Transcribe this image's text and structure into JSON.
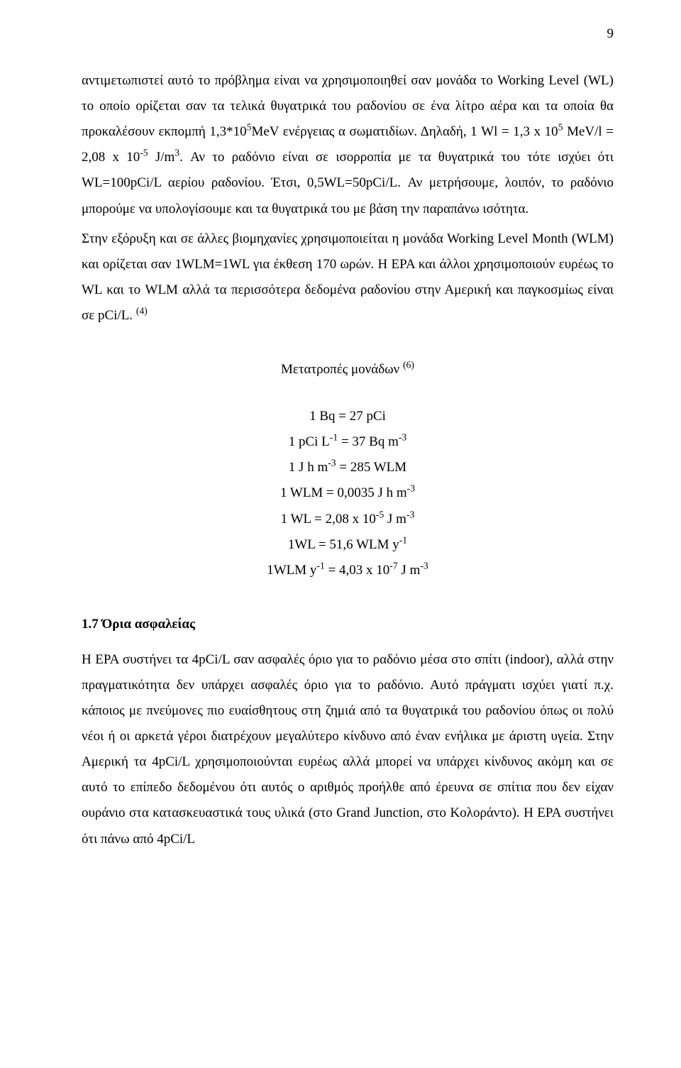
{
  "page_number": "9",
  "paragraph1_html": "αντιμετωπιστεί αυτό το πρόβλημα είναι να χρησιμοποιηθεί σαν μονάδα το Working Level (WL) το οποίο ορίζεται σαν τα τελικά θυγατρικά του ραδονίου σε ένα λίτρο αέρα και τα οποία θα προκαλέσουν εκπομπή 1,3*10<sup>5</sup>MeV ενέργειας α σωματιδίων. Δηλαδή, 1 Wl = 1,3 x 10<sup>5</sup> MeV/l = 2,08 x 10<sup>-5</sup> J/m<sup>3</sup>. Αν το ραδόνιο είναι σε ισορροπία με τα θυγατρικά του τότε ισχύει ότι WL=100pCi/L αερίου ραδονίου. Έτσι, 0,5WL=50pCi/L. Αν μετρήσουμε, λοιπόν, το ραδόνιο μπορούμε να υπολογίσουμε και τα θυγατρικά του με βάση την παραπάνω ισότητα.",
  "paragraph2_html": "Στην εξόρυξη και σε άλλες βιομηχανίες χρησιμοποιείται η μονάδα Working Level Month (WLM) και ορίζεται σαν 1WLM=1WL για έκθεση 170 ωρών. Η EPA και άλλοι χρησιμοποιούν ευρέως το WL και το WLM αλλά τα περισσότερα δεδομένα ραδονίου στην Αμερική και παγκοσμίως είναι σε pCi/L. <sup>(4)</sup>",
  "conversions_title_html": "Μετατροπές μονάδων <sup>(6)</sup>",
  "conversions": [
    "1 Bq = 27 pCi",
    "1 pCi L<sup>-1</sup> = 37 Bq m<sup>-3</sup>",
    "1 J h m<sup>-3</sup> = 285 WLM",
    "1 WLM = 0,0035  J h m<sup>-3</sup>",
    "1 WL = 2,08 x 10<sup>-5</sup> J m<sup>-3</sup>",
    "1WL = 51,6 WLM y<sup>-1</sup>",
    "1WLM y<sup>-1</sup> = 4,03 x 10<sup>-7</sup> J  m<sup>-3</sup>"
  ],
  "section_heading": "1.7 Όρια ασφαλείας",
  "paragraph3_html": "Η EPA συστήνει τα 4pCi/L σαν ασφαλές όριο για το ραδόνιο μέσα στο σπίτι (indoor), αλλά στην πραγματικότητα δεν υπάρχει ασφαλές όριο για το ραδόνιο. Αυτό πράγματι ισχύει γιατί π.χ. κάποιος με πνεύμονες πιο ευαίσθητους στη ζημιά από τα θυγατρικά του ραδονίου όπως οι πολύ νέοι ή οι αρκετά γέροι διατρέχουν μεγαλύτερο κίνδυνο από έναν ενήλικα με άριστη υγεία. Στην Αμερική τα 4pCi/L  χρησιμοποιούνται ευρέως αλλά μπορεί να υπάρχει κίνδυνος ακόμη και σε αυτό το επίπεδο δεδομένου ότι αυτός ο αριθμός προήλθε από έρευνα σε σπίτια που δεν είχαν ουράνιο στα κατασκευαστικά τους υλικά (στο Grand Junction, στο Κολοράντο). Η EPA συστήνει ότι πάνω από 4pCi/L"
}
